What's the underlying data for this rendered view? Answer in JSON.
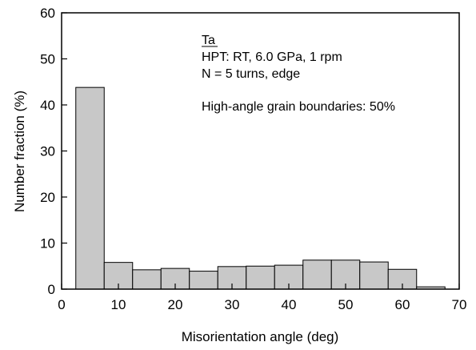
{
  "chart_data": {
    "type": "bar",
    "subtype": "histogram",
    "xlabel": "Misorientation angle (deg)",
    "ylabel": "Number fraction (%)",
    "xlim": [
      0,
      70
    ],
    "ylim": [
      0,
      60
    ],
    "xticks": [
      0,
      10,
      20,
      30,
      40,
      50,
      60,
      70
    ],
    "yticks": [
      0,
      10,
      20,
      30,
      40,
      50,
      60
    ],
    "grid": false,
    "bar_color": "#c8c8c8",
    "bins": [
      {
        "start": 2.5,
        "end": 7.5,
        "value": 43.8
      },
      {
        "start": 7.5,
        "end": 12.5,
        "value": 5.8
      },
      {
        "start": 12.5,
        "end": 17.5,
        "value": 4.2
      },
      {
        "start": 17.5,
        "end": 22.5,
        "value": 4.5
      },
      {
        "start": 22.5,
        "end": 27.5,
        "value": 3.9
      },
      {
        "start": 27.5,
        "end": 32.5,
        "value": 4.9
      },
      {
        "start": 32.5,
        "end": 37.5,
        "value": 5.0
      },
      {
        "start": 37.5,
        "end": 42.5,
        "value": 5.2
      },
      {
        "start": 42.5,
        "end": 47.5,
        "value": 6.3
      },
      {
        "start": 47.5,
        "end": 52.5,
        "value": 6.3
      },
      {
        "start": 52.5,
        "end": 57.5,
        "value": 5.9
      },
      {
        "start": 57.5,
        "end": 62.5,
        "value": 4.3
      },
      {
        "start": 62.5,
        "end": 67.5,
        "value": 0.5
      }
    ],
    "annotation": {
      "line1": "Ta",
      "line2": "HPT: RT, 6.0 GPa, 1 rpm",
      "line3": "N = 5 turns, edge",
      "line4": "High-angle grain boundaries: 50%"
    }
  }
}
